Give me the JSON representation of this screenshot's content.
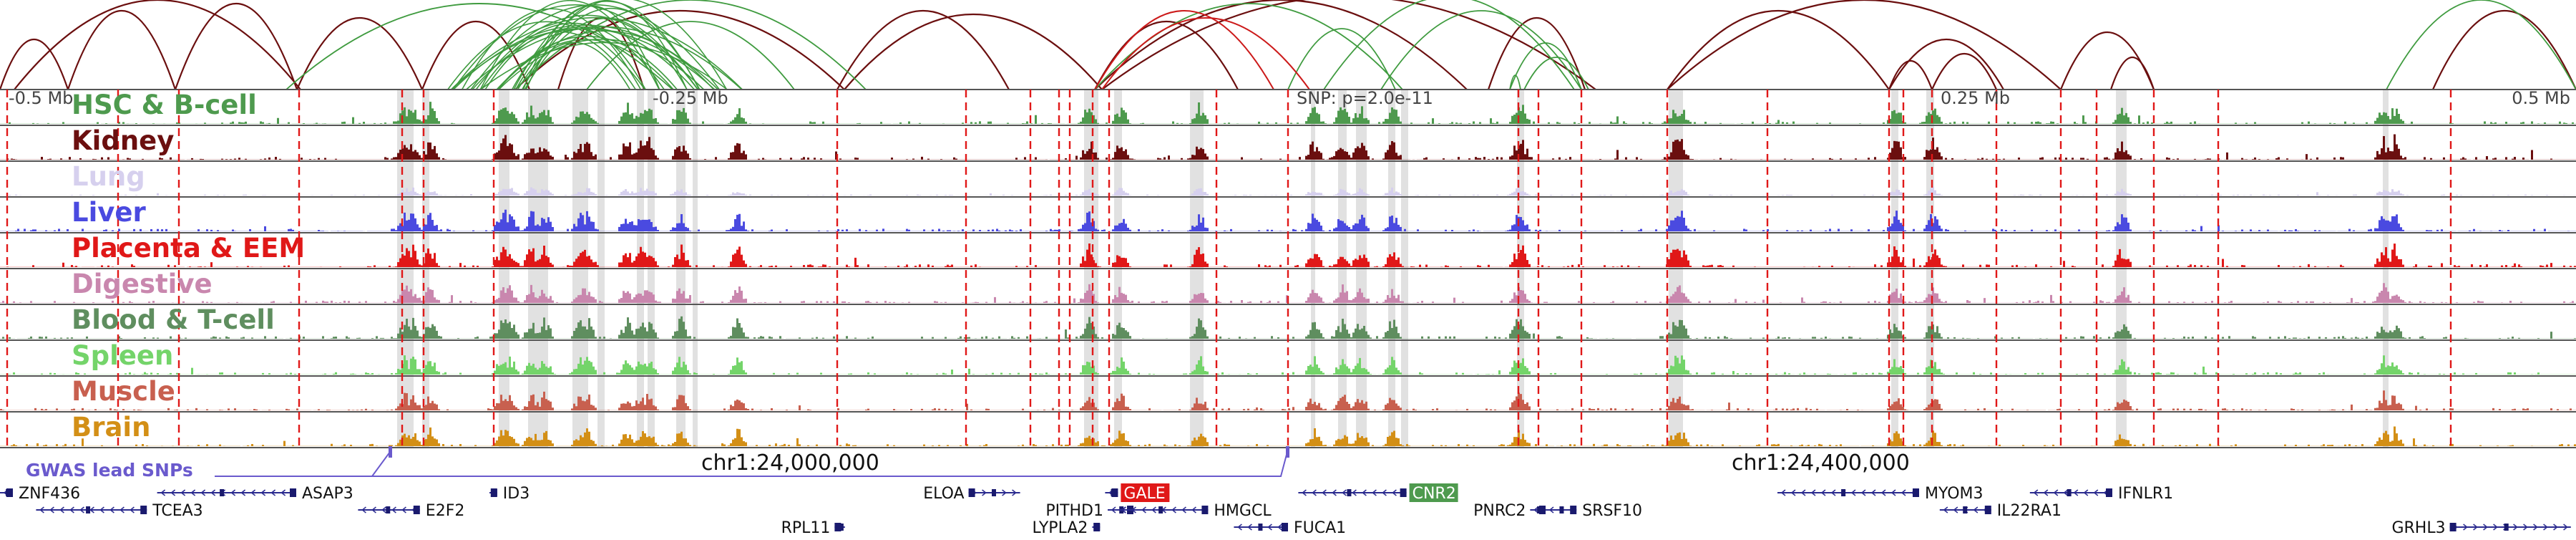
{
  "coords": {
    "ticks": [
      {
        "label": "-0.5 Mb",
        "pos": 0.0
      },
      {
        "label": "-0.25 Mb",
        "pos": 0.25
      },
      {
        "label": "SNP: p=2.0e-11",
        "pos": 0.5
      },
      {
        "label": "0.25 Mb",
        "pos": 0.75
      },
      {
        "label": "0.5 Mb",
        "pos": 1.0
      }
    ]
  },
  "tracks": [
    {
      "name": "HSC & B-cell",
      "color": "#4e9a4e",
      "peak_scale": 0.9
    },
    {
      "name": "Kidney",
      "color": "#6b0f0f",
      "peak_scale": 1.0
    },
    {
      "name": "Lung",
      "color": "#d6d0ee",
      "peak_scale": 0.35
    },
    {
      "name": "Liver",
      "color": "#4a4ae0",
      "peak_scale": 0.9
    },
    {
      "name": "Placenta & EEM",
      "color": "#e01818",
      "peak_scale": 1.0
    },
    {
      "name": "Digestive",
      "color": "#c987ae",
      "peak_scale": 0.8
    },
    {
      "name": "Blood & T-cell",
      "color": "#5f8e5f",
      "peak_scale": 0.95
    },
    {
      "name": "Spleen",
      "color": "#74d46a",
      "peak_scale": 0.85
    },
    {
      "name": "Muscle",
      "color": "#c8604f",
      "peak_scale": 0.8
    },
    {
      "name": "Brain",
      "color": "#d38f16",
      "peak_scale": 0.8
    }
  ],
  "gwas": {
    "label": "GWAS lead SNPs",
    "color": "#6a5acd"
  },
  "chrom_labels": [
    "chr1:24,000,000",
    "chr1:24,400,000"
  ],
  "genes": [
    {
      "name": "ZNF436",
      "row": 0,
      "start": 0.0,
      "end": 0.005,
      "strand": "-",
      "label_side": "right",
      "highlight": ""
    },
    {
      "name": "ASAP3",
      "row": 0,
      "start": 0.061,
      "end": 0.115,
      "strand": "-",
      "label_side": "right",
      "highlight": ""
    },
    {
      "name": "ID3",
      "row": 0,
      "start": 0.19,
      "end": 0.193,
      "strand": "-",
      "label_side": "right",
      "highlight": ""
    },
    {
      "name": "ELOA",
      "row": 0,
      "start": 0.376,
      "end": 0.396,
      "strand": "+",
      "label_side": "left",
      "highlight": ""
    },
    {
      "name": "GALE",
      "row": 0,
      "start": 0.429,
      "end": 0.434,
      "strand": "-",
      "label_side": "right",
      "highlight": "#e01818"
    },
    {
      "name": "CNR2",
      "row": 0,
      "start": 0.504,
      "end": 0.546,
      "strand": "-",
      "label_side": "right",
      "highlight": "#4e9a4e"
    },
    {
      "name": "MYOM3",
      "row": 0,
      "start": 0.69,
      "end": 0.745,
      "strand": "-",
      "label_side": "right",
      "highlight": ""
    },
    {
      "name": "IFNLR1",
      "row": 0,
      "start": 0.788,
      "end": 0.82,
      "strand": "-",
      "label_side": "right",
      "highlight": ""
    },
    {
      "name": "TCEA3",
      "row": 1,
      "start": 0.014,
      "end": 0.057,
      "strand": "-",
      "label_side": "right",
      "highlight": ""
    },
    {
      "name": "E2F2",
      "row": 1,
      "start": 0.139,
      "end": 0.163,
      "strand": "-",
      "label_side": "right",
      "highlight": ""
    },
    {
      "name": "PITHD1",
      "row": 1,
      "start": 0.43,
      "end": 0.44,
      "strand": "-",
      "label_side": "left",
      "highlight": ""
    },
    {
      "name": "HMGCL",
      "row": 1,
      "start": 0.434,
      "end": 0.469,
      "strand": "-",
      "label_side": "right",
      "highlight": ""
    },
    {
      "name": "PNRC2",
      "row": 1,
      "start": 0.594,
      "end": 0.6,
      "strand": "-",
      "label_side": "left",
      "highlight": ""
    },
    {
      "name": "SRSF10",
      "row": 1,
      "start": 0.6,
      "end": 0.612,
      "strand": "-",
      "label_side": "right",
      "highlight": ""
    },
    {
      "name": "IL22RA1",
      "row": 1,
      "start": 0.753,
      "end": 0.773,
      "strand": "-",
      "label_side": "right",
      "highlight": ""
    },
    {
      "name": "RPL11",
      "row": 2,
      "start": 0.324,
      "end": 0.328,
      "strand": "+",
      "label_side": "left",
      "highlight": ""
    },
    {
      "name": "LYPLA2",
      "row": 2,
      "start": 0.424,
      "end": 0.427,
      "strand": "-",
      "label_side": "left",
      "highlight": ""
    },
    {
      "name": "FUCA1",
      "row": 2,
      "start": 0.479,
      "end": 0.5,
      "strand": "-",
      "label_side": "right",
      "highlight": ""
    },
    {
      "name": "GRHL3",
      "row": 2,
      "start": 0.951,
      "end": 0.998,
      "strand": "+",
      "label_side": "left",
      "highlight": ""
    }
  ]
}
